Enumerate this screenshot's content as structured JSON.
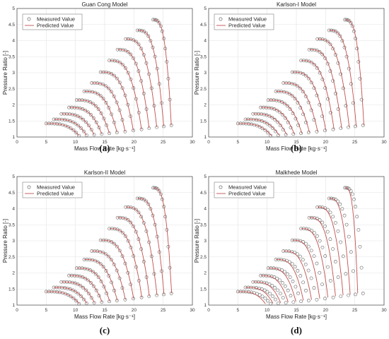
{
  "chart_data": [
    {
      "type": "scatter",
      "title": "Guan Cong Model",
      "xlabel": "Mass Flow Rate [kg·s⁻¹]",
      "ylabel": "Pressure Ratio [-]",
      "xlim": [
        0,
        30
      ],
      "ylim": [
        1,
        5
      ],
      "xticks": [
        "0",
        "5",
        "10",
        "15",
        "20",
        "25",
        "30"
      ],
      "yticks": [
        "1",
        "1.5",
        "2",
        "2.5",
        "3",
        "3.5",
        "4",
        "4.5",
        "5"
      ],
      "grid": true,
      "legend_position": "top-left",
      "legend": [
        "Measured Value",
        "Predicted Value"
      ],
      "caption": "(a)",
      "choke_shift": 0,
      "series": [
        {
          "name": "Measured Value",
          "marker": "circle",
          "color": "#555555",
          "x": [],
          "y": []
        },
        {
          "name": "Predicted Value",
          "marker": "line",
          "color": "#c0504d",
          "x": [],
          "y": []
        }
      ]
    },
    {
      "type": "scatter",
      "title": "Karlson-I Model",
      "xlabel": "Mass Flow Rate [kg·s⁻¹]",
      "ylabel": "Pressure Ratio [-]",
      "xlim": [
        0,
        30
      ],
      "ylim": [
        1,
        5
      ],
      "xticks": [
        "0",
        "5",
        "10",
        "15",
        "20",
        "25",
        "30"
      ],
      "yticks": [
        "1",
        "1.5",
        "2",
        "2.5",
        "3",
        "3.5",
        "4",
        "4.5",
        "5"
      ],
      "grid": true,
      "legend_position": "top-left",
      "legend": [
        "Measured Value",
        "Predicted Value"
      ],
      "caption": "(b)",
      "choke_shift": 0.15,
      "series": [
        {
          "name": "Measured Value",
          "marker": "circle",
          "color": "#555555",
          "x": [],
          "y": []
        },
        {
          "name": "Predicted Value",
          "marker": "line",
          "color": "#c0504d",
          "x": [],
          "y": []
        }
      ]
    },
    {
      "type": "scatter",
      "title": "Karlson-II Model",
      "xlabel": "Mass Flow Rate [kg·s⁻¹]",
      "ylabel": "Pressure Ratio [-]",
      "xlim": [
        0,
        30
      ],
      "ylim": [
        1,
        5
      ],
      "xticks": [
        "0",
        "5",
        "10",
        "15",
        "20",
        "25",
        "30"
      ],
      "yticks": [
        "1",
        "1.5",
        "2",
        "2.5",
        "3",
        "3.5",
        "4",
        "4.5",
        "5"
      ],
      "grid": true,
      "legend_position": "top-left",
      "legend": [
        "Measured Value",
        "Predicted Value"
      ],
      "caption": "(c)",
      "choke_shift": 0.05,
      "series": [
        {
          "name": "Measured Value",
          "marker": "circle",
          "color": "#555555",
          "x": [],
          "y": []
        },
        {
          "name": "Predicted Value",
          "marker": "line",
          "color": "#c0504d",
          "x": [],
          "y": []
        }
      ]
    },
    {
      "type": "scatter",
      "title": "Malkhede Model",
      "xlabel": "Mass Flow Rate [kg·s⁻¹]",
      "ylabel": "Pressure Ratio [-]",
      "xlim": [
        0,
        30
      ],
      "ylim": [
        1,
        5
      ],
      "xticks": [
        "0",
        "5",
        "10",
        "15",
        "20",
        "25",
        "30"
      ],
      "yticks": [
        "1",
        "1.5",
        "2",
        "2.5",
        "3",
        "3.5",
        "4",
        "4.5",
        "5"
      ],
      "grid": true,
      "legend_position": "top-left",
      "legend": [
        "Measured Value",
        "Predicted Value"
      ],
      "caption": "(d)",
      "choke_shift": -0.9,
      "series": [
        {
          "name": "Measured Value",
          "marker": "circle",
          "color": "#555555",
          "x": [],
          "y": []
        },
        {
          "name": "Predicted Value",
          "marker": "line",
          "color": "#c0504d",
          "x": [],
          "y": []
        }
      ]
    }
  ],
  "speed_lines": [
    {
      "peak_pr": 1.42,
      "surge_x": 5.0,
      "choke_x": 10.6
    },
    {
      "peak_pr": 1.55,
      "surge_x": 6.3,
      "choke_x": 11.9
    },
    {
      "peak_pr": 1.72,
      "surge_x": 7.6,
      "choke_x": 13.2
    },
    {
      "peak_pr": 1.92,
      "surge_x": 8.9,
      "choke_x": 14.5
    },
    {
      "peak_pr": 2.15,
      "surge_x": 10.2,
      "choke_x": 15.8
    },
    {
      "peak_pr": 2.42,
      "surge_x": 11.5,
      "choke_x": 17.1
    },
    {
      "peak_pr": 2.68,
      "surge_x": 12.8,
      "choke_x": 18.5
    },
    {
      "peak_pr": 3.02,
      "surge_x": 14.3,
      "choke_x": 19.9
    },
    {
      "peak_pr": 3.38,
      "surge_x": 15.8,
      "choke_x": 21.3
    },
    {
      "peak_pr": 3.72,
      "surge_x": 17.2,
      "choke_x": 22.6
    },
    {
      "peak_pr": 4.05,
      "surge_x": 18.6,
      "choke_x": 23.9
    },
    {
      "peak_pr": 4.32,
      "surge_x": 20.6,
      "choke_x": 25.1
    },
    {
      "peak_pr": 4.65,
      "surge_x": 23.3,
      "choke_x": 26.4
    }
  ]
}
